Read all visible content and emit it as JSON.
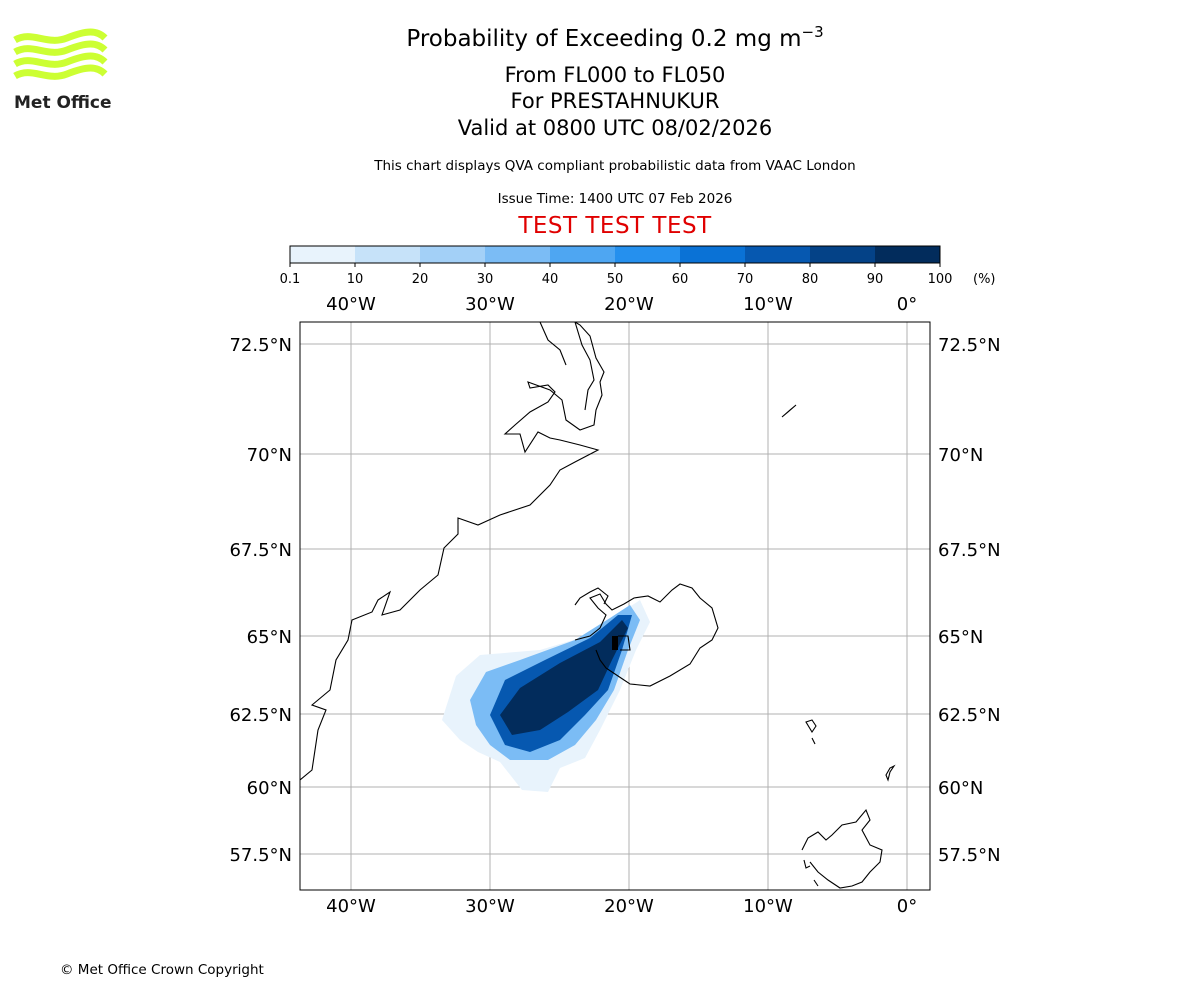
{
  "logo": {
    "text": "Met Office",
    "color": "#ccff33"
  },
  "header": {
    "title_main": "Probability of Exceeding 0.2 mg m",
    "title_sup": "−3",
    "level_range": "From FL000 to FL050",
    "volcano": "For PRESTAHNUKUR",
    "valid_time": "Valid at 0800 UTC 08/02/2026",
    "description": "This chart displays QVA compliant probabilistic data from VAAC London",
    "issue_time": "Issue Time: 1400 UTC 07 Feb 2026",
    "test_banner": "TEST TEST TEST",
    "test_color": "#e00000"
  },
  "colorbar": {
    "tick_labels": [
      "0.1",
      "10",
      "20",
      "30",
      "40",
      "50",
      "60",
      "70",
      "80",
      "90",
      "100"
    ],
    "unit_label": "(%)",
    "colors": [
      "#e8f3fc",
      "#c6e2f9",
      "#a3d0f7",
      "#7bbcf5",
      "#4ea6f2",
      "#2590ee",
      "#0a72d6",
      "#0658b0",
      "#044287",
      "#022c5c"
    ]
  },
  "map": {
    "lon_labels": [
      "40°W",
      "30°W",
      "20°W",
      "10°W",
      "0°"
    ],
    "lat_labels": [
      "72.5°N",
      "70°N",
      "67.5°N",
      "65°N",
      "62.5°N",
      "60°N",
      "57.5°N"
    ],
    "gridline_color": "#b0b0b0",
    "plume_levels": [
      {
        "min_percent": 0.1,
        "max_percent": 10
      },
      {
        "min_percent": 30,
        "max_percent": 60
      },
      {
        "min_percent": 70,
        "max_percent": 80
      },
      {
        "min_percent": 90,
        "max_percent": 100
      }
    ]
  },
  "footer": {
    "copyright": "© Met Office Crown Copyright"
  }
}
